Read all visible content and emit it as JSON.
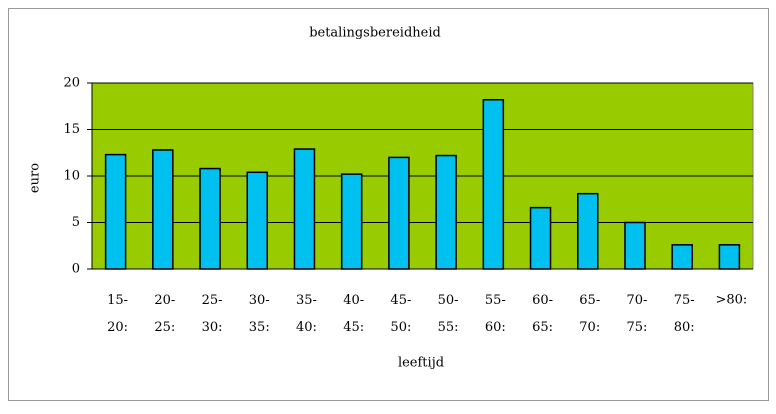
{
  "chart_data": {
    "type": "bar",
    "title": "betalingsbereidheid",
    "xlabel": "leeftijd",
    "ylabel": "euro",
    "categories": [
      "15-\n20:",
      "20-\n25:",
      "25-\n30:",
      "30-\n35:",
      "35-\n40:",
      "40-\n45:",
      "45-\n50:",
      "50-\n55:",
      "55-\n60:",
      "60-\n65:",
      "65-\n70:",
      "70-\n75:",
      "75-\n80:",
      ">80:"
    ],
    "values": [
      12.3,
      12.8,
      10.8,
      10.4,
      12.9,
      10.2,
      12.0,
      12.2,
      18.2,
      6.6,
      8.1,
      5.0,
      2.6,
      2.6
    ],
    "color": "#00c0f0",
    "plot_background": "#99cc00",
    "ylim": [
      0,
      20
    ],
    "yticks": [
      0,
      5,
      10,
      15,
      20
    ],
    "grid": true
  }
}
